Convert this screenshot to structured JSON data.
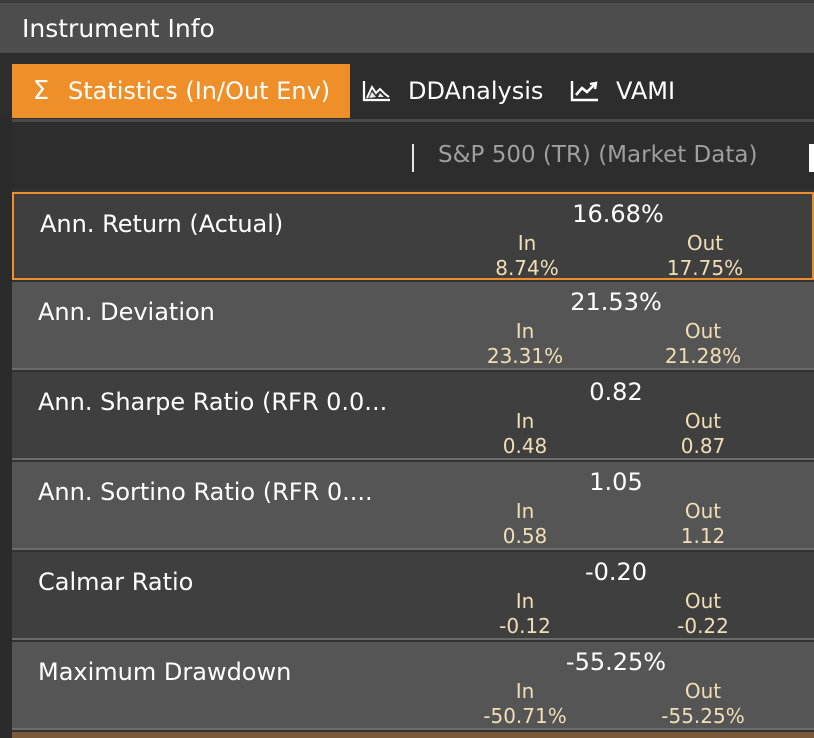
{
  "window": {
    "title": "Instrument Info"
  },
  "tabs": [
    {
      "label": "Statistics (In/Out Env)",
      "icon": "sigma-icon",
      "active": true
    },
    {
      "label": "DDAnalysis",
      "icon": "area-chart-icon",
      "active": false
    },
    {
      "label": "VAMI",
      "icon": "line-chart-icon",
      "active": false
    }
  ],
  "colors": {
    "accent": "#ef8f2a",
    "subtext": "#f0dfb6"
  },
  "table": {
    "column_header": "S&P 500 (TR) (Market Data)",
    "rows": [
      {
        "label": "Ann. Return (Actual)",
        "value": "16.68%",
        "in_label": "In",
        "in_value": "8.74%",
        "out_label": "Out",
        "out_value": "17.75%"
      },
      {
        "label": "Ann. Deviation",
        "value": "21.53%",
        "in_label": "In",
        "in_value": "23.31%",
        "out_label": "Out",
        "out_value": "21.28%"
      },
      {
        "label": "Ann. Sharpe Ratio (RFR 0.0...",
        "value": "0.82",
        "in_label": "In",
        "in_value": "0.48",
        "out_label": "Out",
        "out_value": "0.87"
      },
      {
        "label": "Ann. Sortino Ratio (RFR 0....",
        "value": "1.05",
        "in_label": "In",
        "in_value": "0.58",
        "out_label": "Out",
        "out_value": "1.12"
      },
      {
        "label": "Calmar Ratio",
        "value": "-0.20",
        "in_label": "In",
        "in_value": "-0.12",
        "out_label": "Out",
        "out_value": "-0.22"
      },
      {
        "label": "Maximum Drawdown",
        "value": "-55.25%",
        "in_label": "In",
        "in_value": "-50.71%",
        "out_label": "Out",
        "out_value": "-55.25%"
      }
    ]
  }
}
